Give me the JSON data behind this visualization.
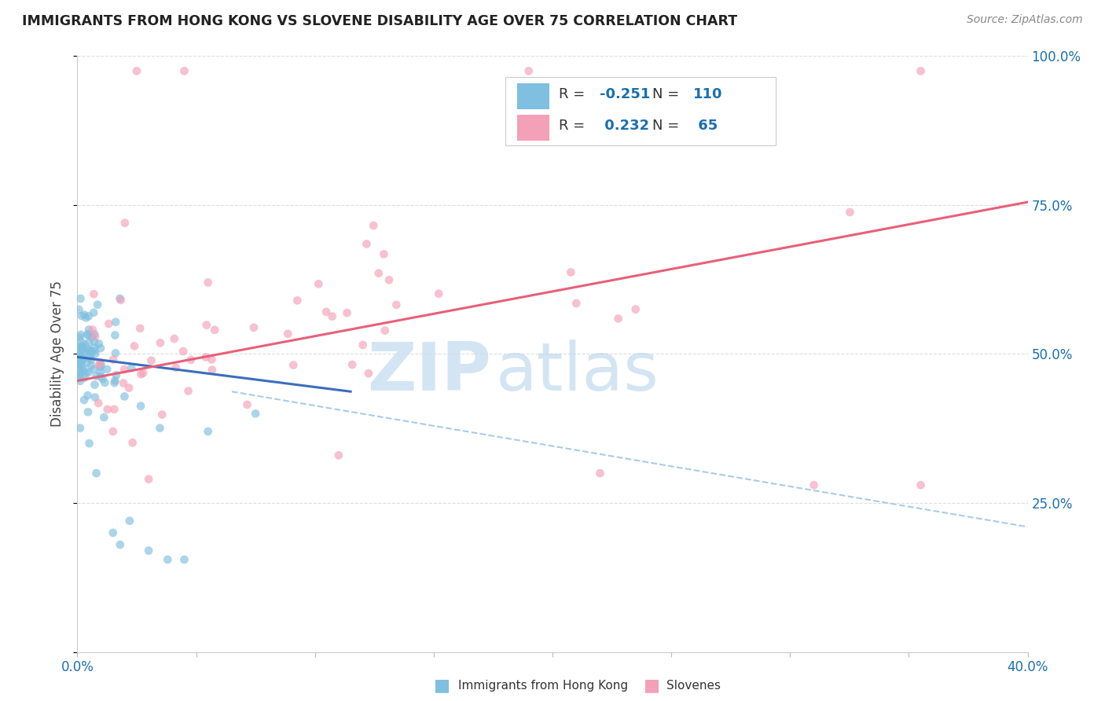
{
  "title": "IMMIGRANTS FROM HONG KONG VS SLOVENE DISABILITY AGE OVER 75 CORRELATION CHART",
  "source": "Source: ZipAtlas.com",
  "ylabel": "Disability Age Over 75",
  "xlabel_blue": "Immigrants from Hong Kong",
  "xlabel_pink": "Slovenes",
  "xlim": [
    0.0,
    0.4
  ],
  "ylim": [
    0.0,
    1.0
  ],
  "R_blue": -0.251,
  "N_blue": 110,
  "R_pink": 0.232,
  "N_pink": 65,
  "color_blue": "#7fbfdf",
  "color_blue_line": "#3a6ebd",
  "color_pink": "#f4a0b8",
  "color_pink_line": "#e8607a",
  "color_dashed": "#a8cce8",
  "watermark_zip": "ZIP",
  "watermark_atlas": "atlas",
  "title_color": "#222222",
  "source_color": "#888888",
  "axis_label_color": "#1a6faf",
  "ylabel_color": "#444444",
  "legend_text_color": "#333333",
  "legend_value_color": "#1a6faf",
  "ytick_positions": [
    0.0,
    0.25,
    0.5,
    0.75,
    1.0
  ],
  "ytick_labels": [
    "",
    "25.0%",
    "50.0%",
    "75.0%",
    "100.0%"
  ],
  "xtick_positions": [
    0.0,
    0.05,
    0.1,
    0.15,
    0.2,
    0.25,
    0.3,
    0.35,
    0.4
  ],
  "xtick_labels": [
    "0.0%",
    "",
    "",
    "",
    "",
    "",
    "",
    "",
    "40.0%"
  ],
  "blue_line_x": [
    0.0,
    0.115
  ],
  "blue_line_y": [
    0.495,
    0.437
  ],
  "pink_line_x": [
    0.0,
    0.4
  ],
  "pink_line_y": [
    0.455,
    0.755
  ],
  "dash_line_x": [
    0.065,
    0.4
  ],
  "dash_line_y": [
    0.437,
    0.21
  ]
}
